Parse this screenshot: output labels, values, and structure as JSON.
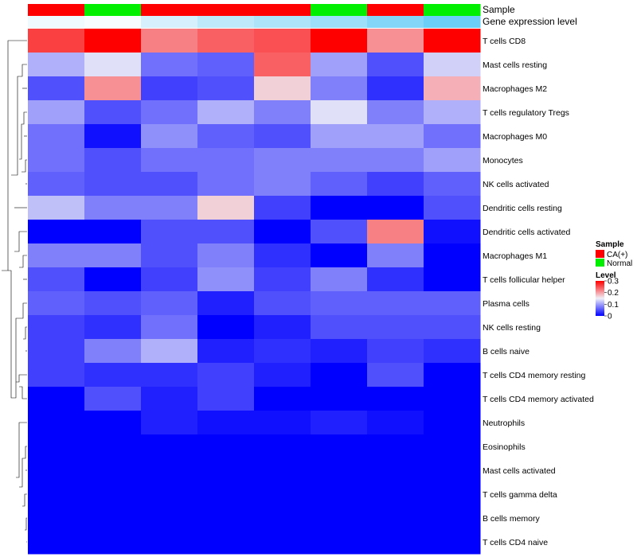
{
  "chart_data": {
    "type": "heatmap",
    "annotations": [
      {
        "name": "Sample",
        "key": "sample"
      },
      {
        "name": "Gene expression level",
        "key": "expression_level"
      }
    ],
    "columns": [
      {
        "sample": "CA(+)",
        "expression_level": 0.1
      },
      {
        "sample": "Normal",
        "expression_level": 0.05
      },
      {
        "sample": "CA(+)",
        "expression_level": 0.25
      },
      {
        "sample": "CA(+)",
        "expression_level": 0.4
      },
      {
        "sample": "CA(+)",
        "expression_level": 0.5
      },
      {
        "sample": "Normal",
        "expression_level": 0.6
      },
      {
        "sample": "CA(+)",
        "expression_level": 0.75
      },
      {
        "sample": "Normal",
        "expression_level": 0.9
      }
    ],
    "rows": [
      "T cells CD8",
      "Mast cells resting",
      "Macrophages M2",
      "T cells regulatory  Tregs",
      "Macrophages M0",
      "Monocytes",
      "NK cells activated",
      "Dendritic cells resting",
      "Dendritic cells activated",
      "Macrophages M1",
      "T cells follicular helper",
      "Plasma cells",
      "NK cells resting",
      "B cells naive",
      "T cells CD4 memory resting",
      "T cells CD4 memory activated",
      "Neutrophils",
      "Eosinophils",
      "Mast cells activated",
      "T cells gamma delta",
      "B cells memory",
      "T cells CD4 naive"
    ],
    "values": [
      [
        0.26,
        0.3,
        0.22,
        0.24,
        0.25,
        0.3,
        0.21,
        0.3
      ],
      [
        0.11,
        0.14,
        0.07,
        0.06,
        0.24,
        0.1,
        0.05,
        0.13
      ],
      [
        0.05,
        0.21,
        0.04,
        0.05,
        0.17,
        0.08,
        0.03,
        0.19
      ],
      [
        0.1,
        0.05,
        0.07,
        0.11,
        0.08,
        0.14,
        0.08,
        0.11
      ],
      [
        0.07,
        0.01,
        0.09,
        0.06,
        0.05,
        0.1,
        0.1,
        0.07
      ],
      [
        0.07,
        0.05,
        0.07,
        0.07,
        0.08,
        0.08,
        0.08,
        0.1
      ],
      [
        0.06,
        0.05,
        0.05,
        0.07,
        0.08,
        0.06,
        0.04,
        0.06
      ],
      [
        0.12,
        0.08,
        0.08,
        0.17,
        0.04,
        0.0,
        0.0,
        0.05
      ],
      [
        0.0,
        0.0,
        0.05,
        0.05,
        0.0,
        0.05,
        0.22,
        0.01
      ],
      [
        0.08,
        0.08,
        0.05,
        0.08,
        0.03,
        0.0,
        0.08,
        0.0
      ],
      [
        0.05,
        0.0,
        0.04,
        0.09,
        0.04,
        0.08,
        0.03,
        0.0
      ],
      [
        0.06,
        0.05,
        0.06,
        0.02,
        0.05,
        0.06,
        0.06,
        0.06
      ],
      [
        0.04,
        0.03,
        0.07,
        0.0,
        0.02,
        0.05,
        0.05,
        0.05
      ],
      [
        0.04,
        0.08,
        0.11,
        0.02,
        0.03,
        0.02,
        0.04,
        0.03
      ],
      [
        0.04,
        0.03,
        0.03,
        0.04,
        0.02,
        0.0,
        0.05,
        0.0
      ],
      [
        0.0,
        0.05,
        0.02,
        0.04,
        0.0,
        0.0,
        0.0,
        0.0
      ],
      [
        0.0,
        0.0,
        0.02,
        0.01,
        0.01,
        0.02,
        0.01,
        0.0
      ],
      [
        0.0,
        0.0,
        0.0,
        0.0,
        0.0,
        0.0,
        0.0,
        0.0
      ],
      [
        0.0,
        0.0,
        0.0,
        0.0,
        0.0,
        0.0,
        0.0,
        0.0
      ],
      [
        0.0,
        0.0,
        0.0,
        0.0,
        0.0,
        0.0,
        0.0,
        0.0
      ],
      [
        0.0,
        0.0,
        0.0,
        0.0,
        0.0,
        0.0,
        0.0,
        0.0
      ],
      [
        0.0,
        0.0,
        0.0,
        0.0,
        0.0,
        0.0,
        0.0,
        0.0
      ]
    ],
    "color_scale": {
      "range": [
        0,
        0.3
      ],
      "low_color": "#0000FF",
      "mid_color": "#F0F0F8",
      "high_color": "#FF0000"
    },
    "legend": {
      "placement": "right",
      "sample": {
        "title": "Sample",
        "items": [
          {
            "label": "CA(+)",
            "color": "#FF0000"
          },
          {
            "label": "Normal",
            "color": "#00EE00"
          }
        ]
      },
      "level": {
        "title": "Level",
        "ticks": [
          "0.3",
          "0.2",
          "0.1",
          "0"
        ]
      },
      "expression_level_colors": {
        "low": "#FFFFFF",
        "high": "#5BC8F5"
      }
    },
    "row_dendrogram": true,
    "column_dendrogram": false
  }
}
